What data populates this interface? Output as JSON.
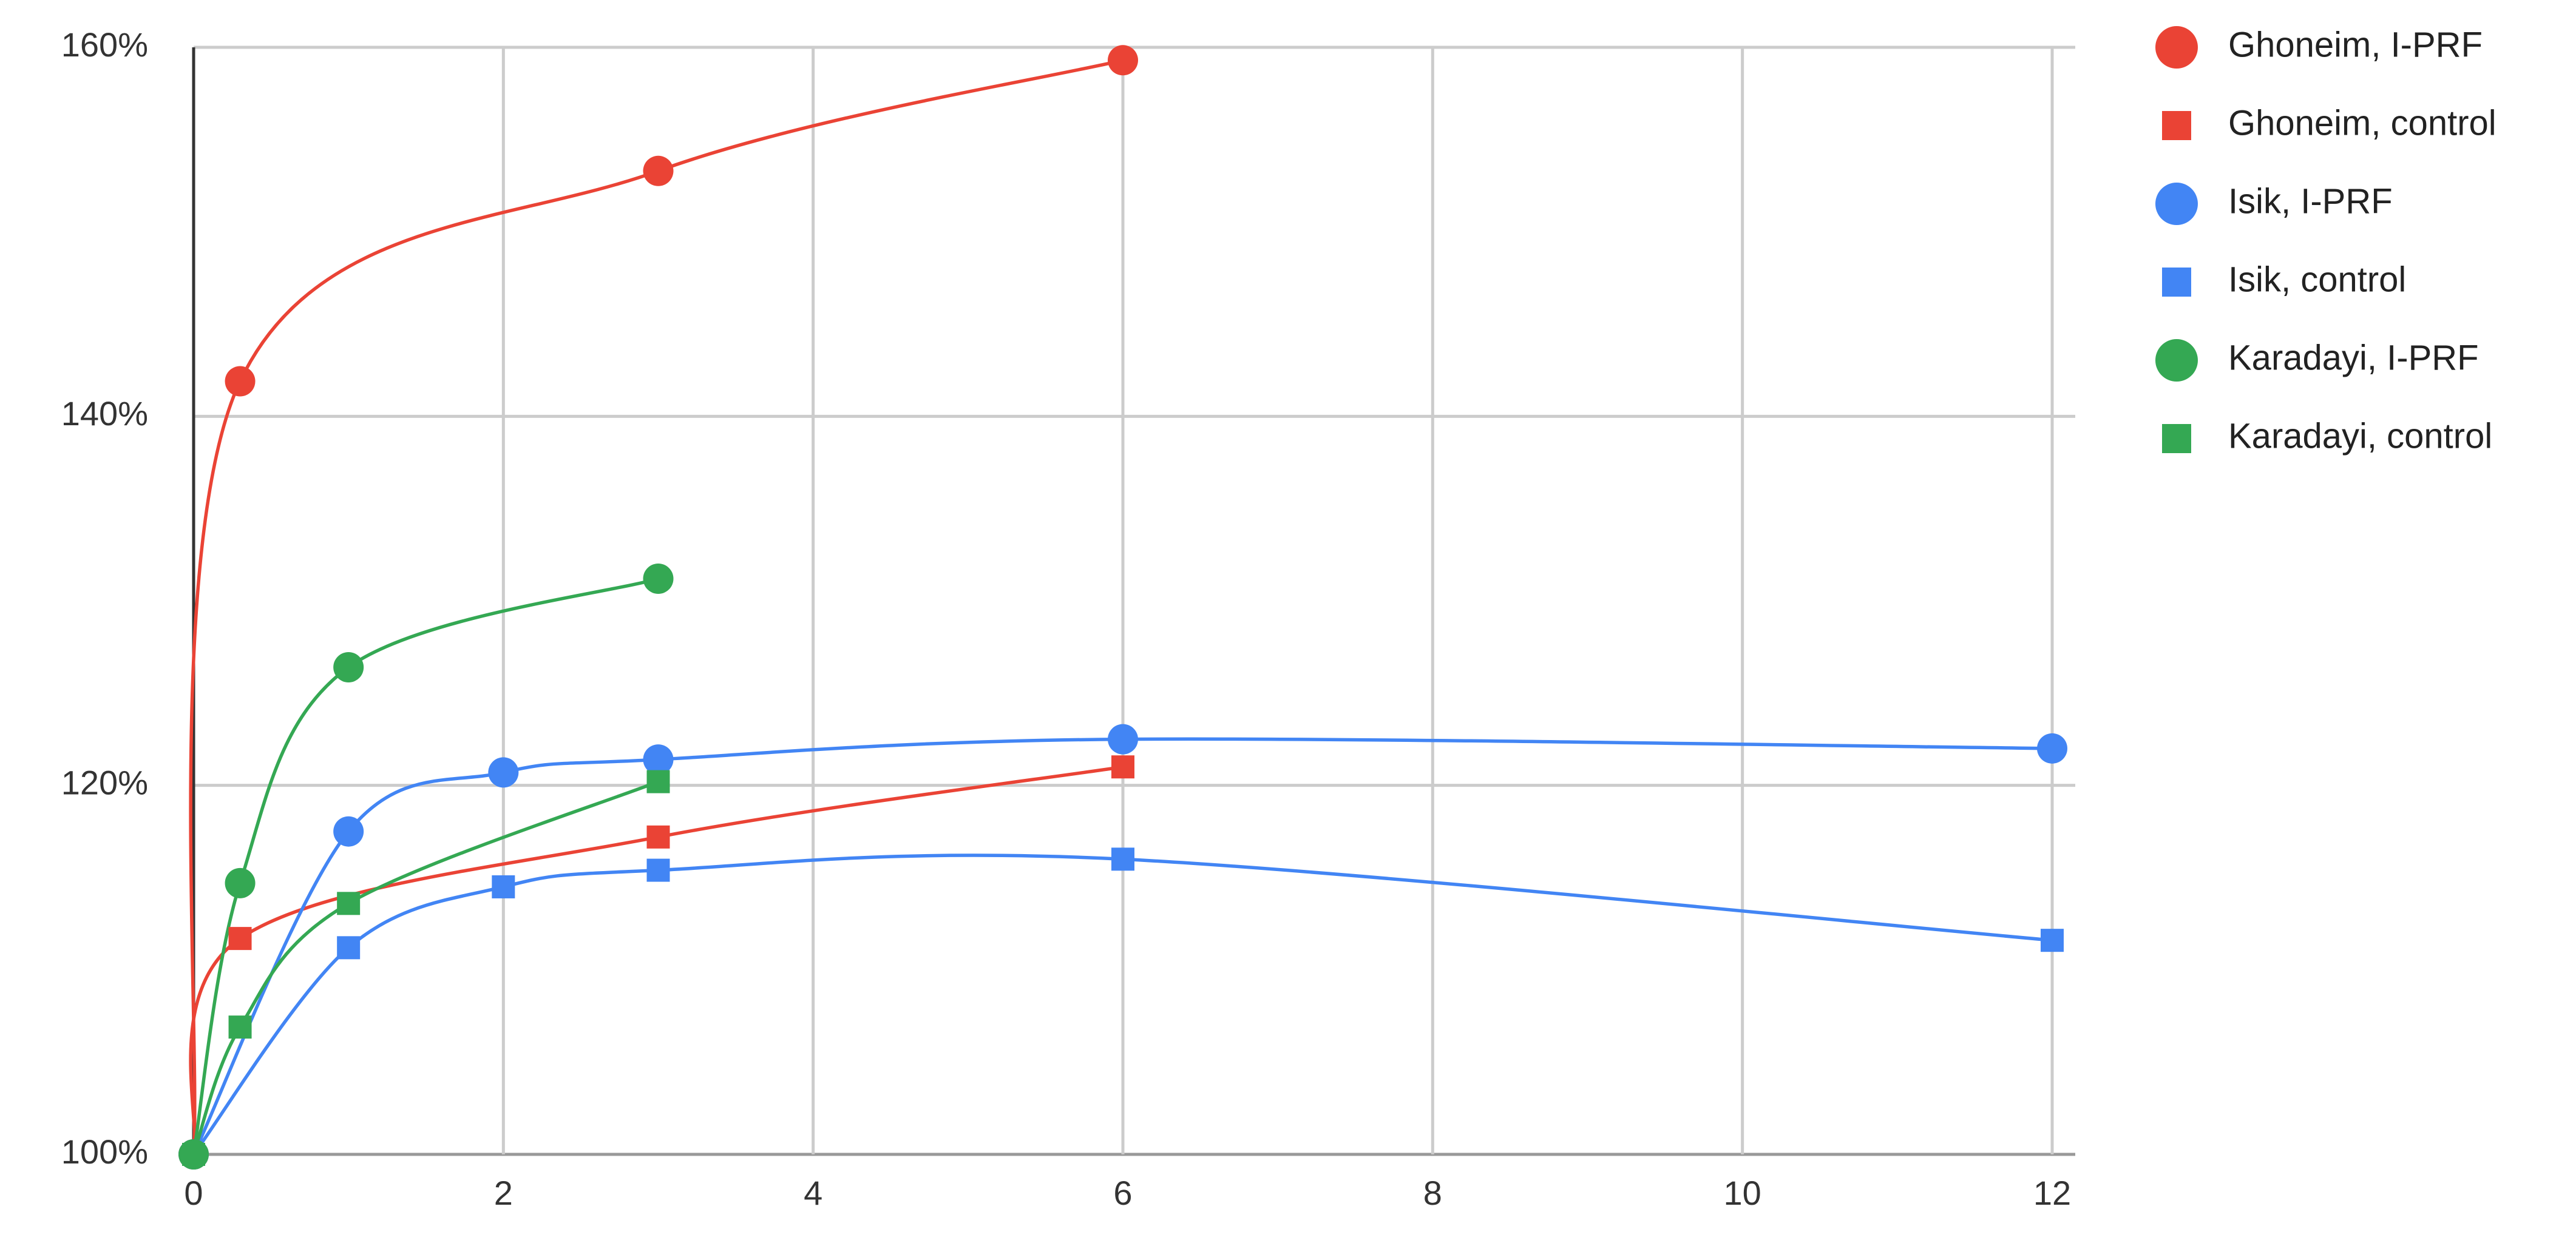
{
  "chart_data": {
    "type": "line",
    "xlim": [
      0,
      12
    ],
    "xticks": [
      0,
      2,
      4,
      6,
      8,
      10,
      12
    ],
    "ylim": [
      100,
      160
    ],
    "yticks": [
      {
        "value": 100,
        "label": "100%"
      },
      {
        "value": 120,
        "label": "120%"
      },
      {
        "value": 140,
        "label": "140%"
      },
      {
        "value": 160,
        "label": "160%"
      }
    ],
    "grid": true,
    "smooth": true,
    "legend": "right",
    "series": [
      {
        "name": "Ghoneim, I-PRF",
        "color": "#ea4335",
        "marker": "circle",
        "x": [
          0,
          0.3,
          3,
          6
        ],
        "values": [
          100,
          141.9,
          153.3,
          159.3
        ]
      },
      {
        "name": "Ghoneim, control",
        "color": "#ea4335",
        "marker": "square",
        "x": [
          0,
          0.3,
          3,
          6
        ],
        "values": [
          100,
          111.7,
          117.2,
          121.0
        ]
      },
      {
        "name": "Isik, I-PRF",
        "color": "#4285f4",
        "marker": "circle",
        "x": [
          0,
          1,
          2,
          3,
          6,
          12
        ],
        "values": [
          100,
          117.5,
          120.7,
          121.4,
          122.5,
          122.0
        ]
      },
      {
        "name": "Isik, control",
        "color": "#4285f4",
        "marker": "square",
        "x": [
          0,
          1,
          2,
          3,
          6,
          12
        ],
        "values": [
          100,
          111.2,
          114.5,
          115.4,
          116.0,
          111.6
        ]
      },
      {
        "name": "Karadayi, I-PRF",
        "color": "#34a853",
        "marker": "circle",
        "x": [
          0,
          0.3,
          1,
          3
        ],
        "values": [
          100,
          114.7,
          126.4,
          131.2
        ]
      },
      {
        "name": "Karadayi, control",
        "color": "#34a853",
        "marker": "square",
        "x": [
          0,
          0.3,
          1,
          3
        ],
        "values": [
          100,
          106.9,
          113.6,
          120.2
        ]
      }
    ]
  }
}
